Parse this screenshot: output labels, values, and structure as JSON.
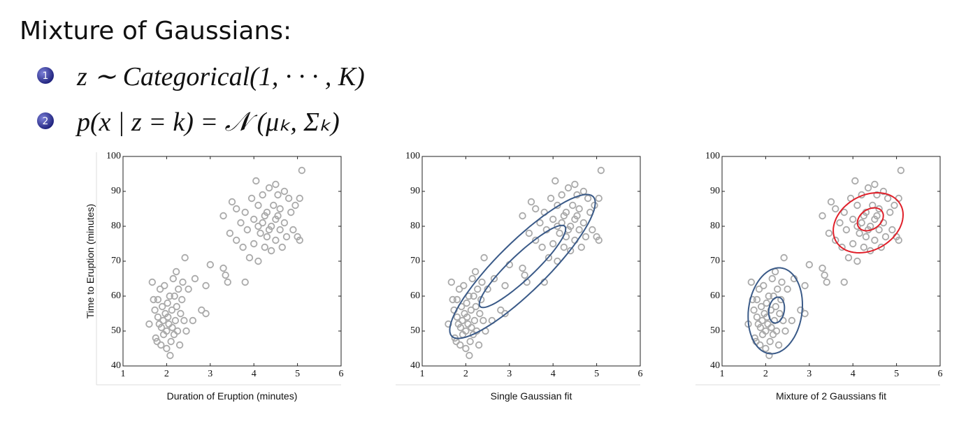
{
  "header": {
    "title": "Mixture of Gaussians:"
  },
  "list": [
    {
      "number": "1",
      "text": "z ∼ Categorical(1, · · · , K)"
    },
    {
      "number": "2",
      "text": "p(x | z = k) = 𝒩 (μₖ, Σₖ)"
    }
  ],
  "chart_data": [
    {
      "type": "scatter",
      "xlabel": "Duration of Eruption (minutes)",
      "ylabel": "Time to Eruption (minutes)",
      "color": "#aaaaaa",
      "xlim": [
        1,
        6
      ],
      "ylim": [
        40,
        100
      ],
      "xticks": [
        1,
        2,
        3,
        4,
        5,
        6
      ],
      "yticks": [
        40,
        50,
        60,
        70,
        80,
        90,
        100
      ],
      "x": [
        1.6,
        1.67,
        1.7,
        1.73,
        1.75,
        1.78,
        1.8,
        1.8,
        1.83,
        1.85,
        1.87,
        1.88,
        1.9,
        1.92,
        1.93,
        1.95,
        1.97,
        2.0,
        2.0,
        2.02,
        2.03,
        2.05,
        2.07,
        2.08,
        2.1,
        2.12,
        2.13,
        2.15,
        2.17,
        2.18,
        2.2,
        2.22,
        2.23,
        2.25,
        2.27,
        2.3,
        2.32,
        2.35,
        2.37,
        2.4,
        2.42,
        2.45,
        2.5,
        2.6,
        2.65,
        2.8,
        2.9,
        2.9,
        3.0,
        3.3,
        3.35,
        3.4,
        3.3,
        3.5,
        3.45,
        3.8,
        3.6,
        3.6,
        3.7,
        3.75,
        3.8,
        3.85,
        3.9,
        3.95,
        4.0,
        4.0,
        4.05,
        4.1,
        4.1,
        4.15,
        4.2,
        4.2,
        4.25,
        4.3,
        4.3,
        4.35,
        4.4,
        4.4,
        4.45,
        4.5,
        4.5,
        4.55,
        4.6,
        4.6,
        4.65,
        4.7,
        4.7,
        4.75,
        4.8,
        4.85,
        4.9,
        4.95,
        5.0,
        5.05,
        5.1,
        5.05,
        4.5,
        4.25,
        4.1,
        4.35,
        4.55
      ],
      "y": [
        52,
        64,
        59,
        56,
        48,
        47,
        54,
        59,
        52,
        62,
        46,
        51,
        57,
        53,
        49,
        63,
        55,
        45,
        50,
        58,
        54,
        52,
        60,
        43,
        47,
        56,
        51,
        65,
        49,
        60,
        53,
        67,
        57,
        50,
        62,
        46,
        55,
        59,
        64,
        53,
        71,
        50,
        62,
        53,
        65,
        56,
        63,
        55,
        69,
        68,
        66,
        64,
        83,
        87,
        78,
        64,
        85,
        76,
        81,
        74,
        84,
        79,
        71,
        88,
        82,
        75,
        93,
        70,
        86,
        78,
        81,
        89,
        74,
        84,
        77,
        91,
        80,
        73,
        86,
        82,
        76,
        89,
        79,
        85,
        74,
        90,
        81,
        77,
        88,
        84,
        79,
        86,
        77,
        88,
        96,
        76,
        92,
        83,
        80,
        79,
        83
      ]
    },
    {
      "type": "scatter",
      "xlabel": "Single Gaussian fit",
      "color": "#aaaaaa",
      "xlim": [
        1,
        6
      ],
      "ylim": [
        40,
        100
      ],
      "xticks": [
        1,
        2,
        3,
        4,
        5,
        6
      ],
      "yticks": [
        40,
        50,
        60,
        70,
        80,
        90,
        100
      ],
      "x": [
        1.6,
        1.67,
        1.7,
        1.73,
        1.75,
        1.78,
        1.8,
        1.8,
        1.83,
        1.85,
        1.87,
        1.88,
        1.9,
        1.92,
        1.93,
        1.95,
        1.97,
        2.0,
        2.0,
        2.02,
        2.03,
        2.05,
        2.07,
        2.08,
        2.1,
        2.12,
        2.13,
        2.15,
        2.17,
        2.18,
        2.2,
        2.22,
        2.23,
        2.25,
        2.27,
        2.3,
        2.32,
        2.35,
        2.37,
        2.4,
        2.42,
        2.45,
        2.5,
        2.6,
        2.65,
        2.8,
        2.9,
        2.9,
        3.0,
        3.3,
        3.35,
        3.4,
        3.3,
        3.5,
        3.45,
        3.8,
        3.6,
        3.6,
        3.7,
        3.75,
        3.8,
        3.85,
        3.9,
        3.95,
        4.0,
        4.0,
        4.05,
        4.1,
        4.1,
        4.15,
        4.2,
        4.2,
        4.25,
        4.3,
        4.3,
        4.35,
        4.4,
        4.4,
        4.45,
        4.5,
        4.5,
        4.55,
        4.6,
        4.6,
        4.65,
        4.7,
        4.7,
        4.75,
        4.8,
        4.85,
        4.9,
        4.95,
        5.0,
        5.05,
        5.1,
        5.05,
        4.5,
        4.25,
        4.1,
        4.35,
        4.55
      ],
      "y": [
        52,
        64,
        59,
        56,
        48,
        47,
        54,
        59,
        52,
        62,
        46,
        51,
        57,
        53,
        49,
        63,
        55,
        45,
        50,
        58,
        54,
        52,
        60,
        43,
        47,
        56,
        51,
        65,
        49,
        60,
        53,
        67,
        57,
        50,
        62,
        46,
        55,
        59,
        64,
        53,
        71,
        50,
        62,
        53,
        65,
        56,
        63,
        55,
        69,
        68,
        66,
        64,
        83,
        87,
        78,
        64,
        85,
        76,
        81,
        74,
        84,
        79,
        71,
        88,
        82,
        75,
        93,
        70,
        86,
        78,
        81,
        89,
        74,
        84,
        77,
        91,
        80,
        73,
        86,
        82,
        76,
        89,
        79,
        85,
        74,
        90,
        81,
        77,
        88,
        84,
        79,
        86,
        77,
        88,
        96,
        76,
        92,
        83,
        80,
        79,
        83
      ],
      "ellipses": [
        {
          "color": "#3a5a88",
          "center": [
            3.3,
            68.5
          ],
          "axes": [
            [
              1.62,
              20
            ],
            [
              0.4,
              -5
            ]
          ]
        },
        {
          "color": "#3a5a88",
          "center": [
            3.3,
            68.5
          ],
          "axes": [
            [
              0.97,
              11.5
            ],
            [
              0.2,
              -2.5
            ]
          ]
        }
      ]
    },
    {
      "type": "scatter",
      "xlabel": "Mixture of 2 Gaussians fit",
      "color": "#aaaaaa",
      "xlim": [
        1,
        6
      ],
      "ylim": [
        40,
        100
      ],
      "xticks": [
        1,
        2,
        3,
        4,
        5,
        6
      ],
      "yticks": [
        40,
        50,
        60,
        70,
        80,
        90,
        100
      ],
      "x": [
        1.6,
        1.67,
        1.7,
        1.73,
        1.75,
        1.78,
        1.8,
        1.8,
        1.83,
        1.85,
        1.87,
        1.88,
        1.9,
        1.92,
        1.93,
        1.95,
        1.97,
        2.0,
        2.0,
        2.02,
        2.03,
        2.05,
        2.07,
        2.08,
        2.1,
        2.12,
        2.13,
        2.15,
        2.17,
        2.18,
        2.2,
        2.22,
        2.23,
        2.25,
        2.27,
        2.3,
        2.32,
        2.35,
        2.37,
        2.4,
        2.42,
        2.45,
        2.5,
        2.6,
        2.65,
        2.8,
        2.9,
        2.9,
        3.0,
        3.3,
        3.35,
        3.4,
        3.3,
        3.5,
        3.45,
        3.8,
        3.6,
        3.6,
        3.7,
        3.75,
        3.8,
        3.85,
        3.9,
        3.95,
        4.0,
        4.0,
        4.05,
        4.1,
        4.1,
        4.15,
        4.2,
        4.2,
        4.25,
        4.3,
        4.3,
        4.35,
        4.4,
        4.4,
        4.45,
        4.5,
        4.5,
        4.55,
        4.6,
        4.6,
        4.65,
        4.7,
        4.7,
        4.75,
        4.8,
        4.85,
        4.9,
        4.95,
        5.0,
        5.05,
        5.1,
        5.05,
        4.5,
        4.25,
        4.1,
        4.35,
        4.55
      ],
      "y": [
        52,
        64,
        59,
        56,
        48,
        47,
        54,
        59,
        52,
        62,
        46,
        51,
        57,
        53,
        49,
        63,
        55,
        45,
        50,
        58,
        54,
        52,
        60,
        43,
        47,
        56,
        51,
        65,
        49,
        60,
        53,
        67,
        57,
        50,
        62,
        46,
        55,
        59,
        64,
        53,
        71,
        50,
        62,
        53,
        65,
        56,
        63,
        55,
        69,
        68,
        66,
        64,
        83,
        87,
        78,
        64,
        85,
        76,
        81,
        74,
        84,
        79,
        71,
        88,
        82,
        75,
        93,
        70,
        86,
        78,
        81,
        89,
        74,
        84,
        77,
        91,
        80,
        73,
        86,
        82,
        76,
        89,
        79,
        85,
        74,
        90,
        81,
        77,
        88,
        84,
        79,
        86,
        77,
        88,
        96,
        76,
        92,
        83,
        80,
        79,
        83
      ],
      "ellipses": [
        {
          "color": "#3a5a88",
          "center": [
            2.22,
            55.8
          ],
          "axes": [
            [
              0.62,
              0.5
            ],
            [
              0.06,
              12.3
            ]
          ]
        },
        {
          "color": "#3a5a88",
          "center": [
            2.25,
            56
          ],
          "axes": [
            [
              0.18,
              0.2
            ],
            [
              0.02,
              3.7
            ]
          ]
        },
        {
          "color": "#e0202a",
          "center": [
            4.35,
            81
          ],
          "axes": [
            [
              0.75,
              5
            ],
            [
              -0.28,
              7
            ]
          ]
        },
        {
          "color": "#e0202a",
          "center": [
            4.4,
            82
          ],
          "axes": [
            [
              0.28,
              2
            ],
            [
              -0.1,
              2.6
            ]
          ]
        }
      ]
    }
  ]
}
